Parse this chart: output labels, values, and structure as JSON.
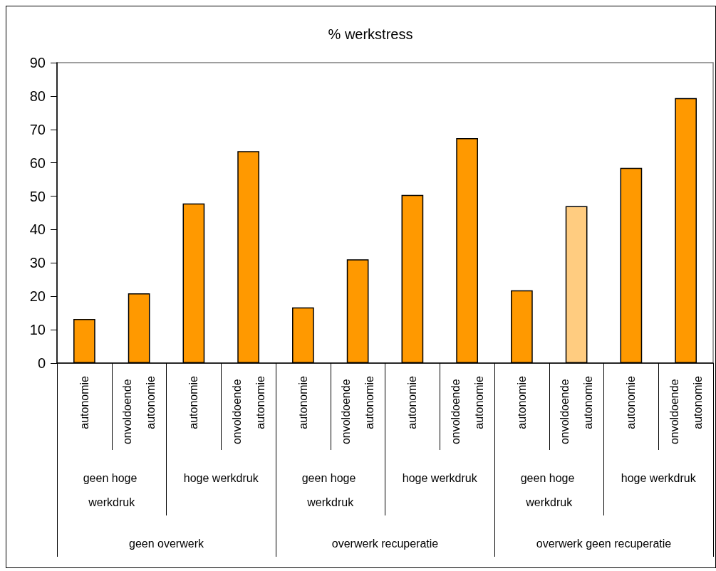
{
  "chart_data": {
    "type": "bar",
    "title": "% werkstress",
    "categories": [
      "autonomie",
      "onvoldoende autonomie",
      "autonomie",
      "onvoldoende autonomie",
      "autonomie",
      "onvoldoende autonomie",
      "autonomie",
      "onvoldoende autonomie",
      "autonomie",
      "onvoldoende autonomie",
      "autonomie",
      "onvoldoende autonomie"
    ],
    "values": [
      13.2,
      20.9,
      47.8,
      63.5,
      16.7,
      31.1,
      50.4,
      67.4,
      21.8,
      47,
      58.5,
      79.4
    ],
    "colors": [
      "#ff9900",
      "#ff9900",
      "#ff9900",
      "#ff9900",
      "#ff9900",
      "#ff9900",
      "#ff9900",
      "#ff9900",
      "#ff9900",
      "#ffcc80",
      "#ff9900",
      "#ff9900"
    ],
    "ylim": [
      0,
      90
    ],
    "yticks": [
      0,
      10,
      20,
      30,
      40,
      50,
      60,
      70,
      80,
      90
    ],
    "annotations": [
      "geen hoge werkdruk",
      "hoge werkdruk",
      "geen hoge werkdruk",
      "hoge werkdruk",
      "geen hoge werkdruk",
      "hoge werkdruk",
      "geen overwerk",
      "overwerk recuperatie",
      "overwerk geen recuperatie"
    ]
  }
}
